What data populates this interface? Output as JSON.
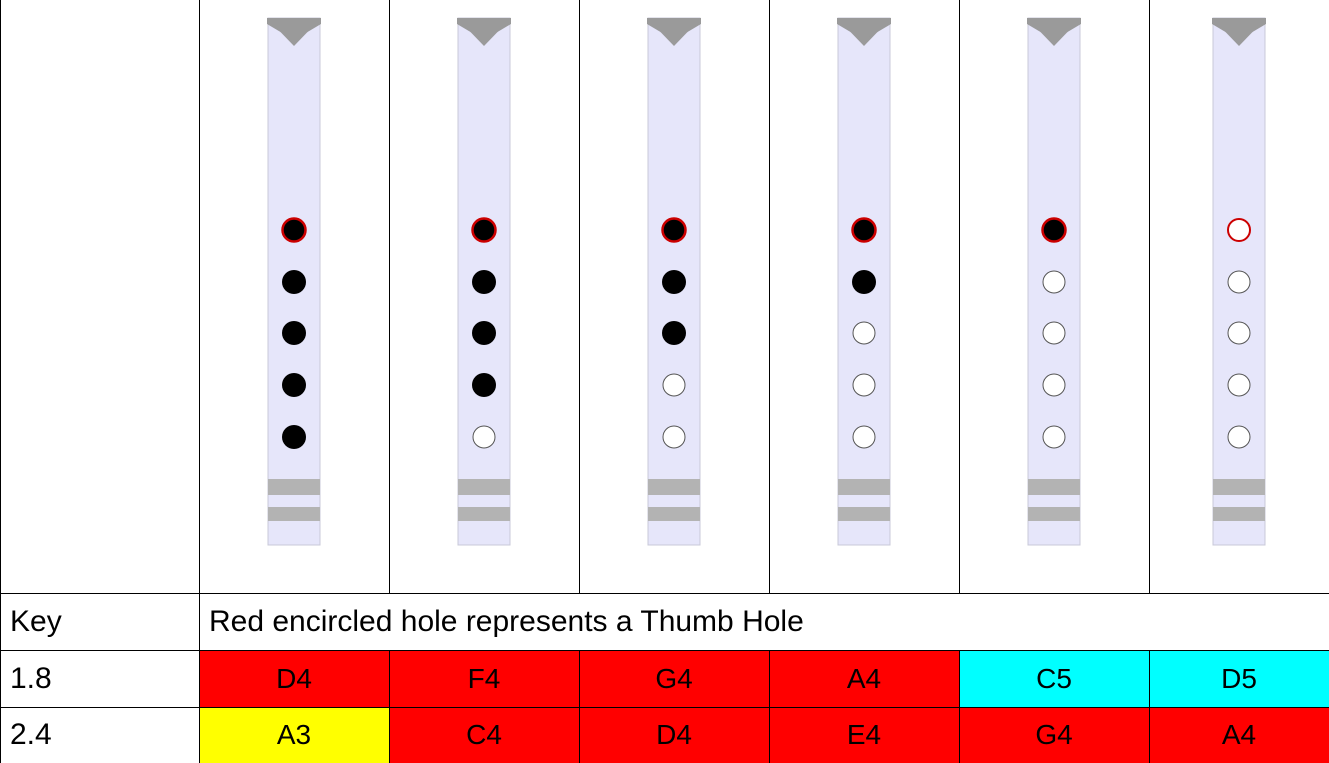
{
  "colors": {
    "red": "#ff0000",
    "cyan": "#00ffff",
    "yellow": "#ffff00",
    "flute_body": "#e6e6fa",
    "thumb_ring": "#cc0000",
    "closed_hole": "#000000",
    "open_hole": "#ffffff",
    "band": "#b3b3b3"
  },
  "fingerings": [
    [
      "thumb-closed",
      "closed",
      "closed",
      "closed",
      "closed"
    ],
    [
      "thumb-closed",
      "closed",
      "closed",
      "closed",
      "open"
    ],
    [
      "thumb-closed",
      "closed",
      "closed",
      "open",
      "open"
    ],
    [
      "thumb-closed",
      "closed",
      "open",
      "open",
      "open"
    ],
    [
      "thumb-closed",
      "open",
      "open",
      "open",
      "open"
    ],
    [
      "thumb-open",
      "open",
      "open",
      "open",
      "open"
    ]
  ],
  "key_row": {
    "label": "Key",
    "description": "Red encircled hole represents a Thumb Hole"
  },
  "rows": [
    {
      "label": "1.8",
      "notes": [
        "D4",
        "F4",
        "G4",
        "A4",
        "C5",
        "D5"
      ],
      "fills": [
        "red",
        "red",
        "red",
        "red",
        "cyan",
        "cyan"
      ]
    },
    {
      "label": "2.4",
      "notes": [
        "A3",
        "C4",
        "D4",
        "E4",
        "G4",
        "A4"
      ],
      "fills": [
        "yellow",
        "red",
        "red",
        "red",
        "red",
        "red"
      ]
    }
  ]
}
